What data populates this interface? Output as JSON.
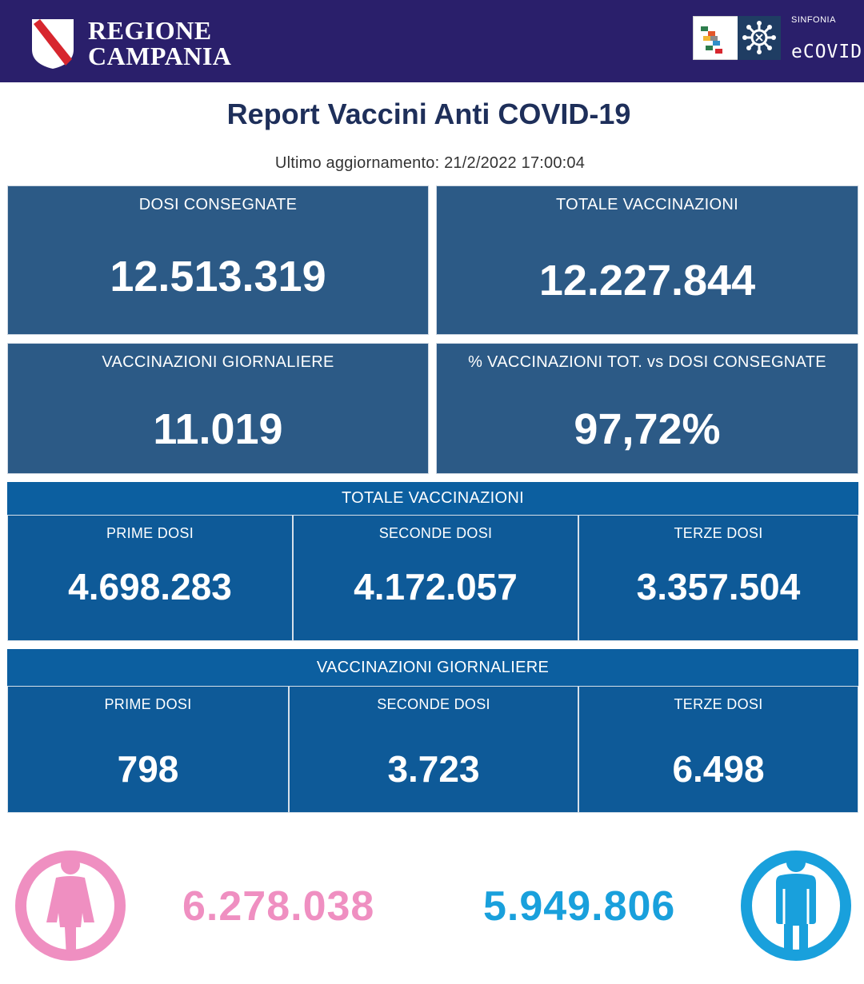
{
  "header": {
    "region_line1": "REGIONE",
    "region_line2": "CAMPANIA",
    "brand_top": "SINFONIA",
    "brand_name": "eCOVID",
    "colors": {
      "background": "#2a1f6b",
      "brand_panel": "#1f3d63"
    }
  },
  "report": {
    "title": "Report Vaccini Anti COVID-19",
    "last_update": "Ultimo aggiornamento: 21/2/2022  17:00:04"
  },
  "summary": {
    "doses_delivered": {
      "label": "DOSI  CONSEGNATE",
      "value": "12.513.319"
    },
    "total_vaccinations": {
      "label": "TOTALE VACCINAZIONI",
      "value": "12.227.844"
    },
    "daily_vaccinations": {
      "label": "VACCINAZIONI GIORNALIERE",
      "value": "11.019"
    },
    "percentage": {
      "label": "% VACCINAZIONI TOT. vs DOSI CONSEGNATE",
      "value": "97,72%"
    }
  },
  "totals": {
    "section_label": "TOTALE VACCINAZIONI",
    "first": {
      "label": "PRIME DOSI",
      "value": "4.698.283"
    },
    "second": {
      "label": "SECONDE DOSI",
      "value": "4.172.057"
    },
    "third": {
      "label": "TERZE DOSI",
      "value": "3.357.504"
    }
  },
  "daily": {
    "section_label": "VACCINAZIONI GIORNALIERE",
    "first": {
      "label": "PRIME DOSI",
      "value": "798"
    },
    "second": {
      "label": "SECONDE DOSI",
      "value": "3.723"
    },
    "third": {
      "label": "TERZE DOSI",
      "value": "6.498"
    }
  },
  "gender": {
    "female": {
      "value": "6.278.038",
      "color": "#ef8fc1",
      "icon": "female-icon"
    },
    "male": {
      "value": "5.949.806",
      "color": "#19a0dc",
      "icon": "male-icon"
    }
  },
  "colors": {
    "title": "#1e2f5a",
    "summary_card": "#2c5a86",
    "section_bar": "#0c5fa0",
    "sub_card": "#0e5a98"
  }
}
